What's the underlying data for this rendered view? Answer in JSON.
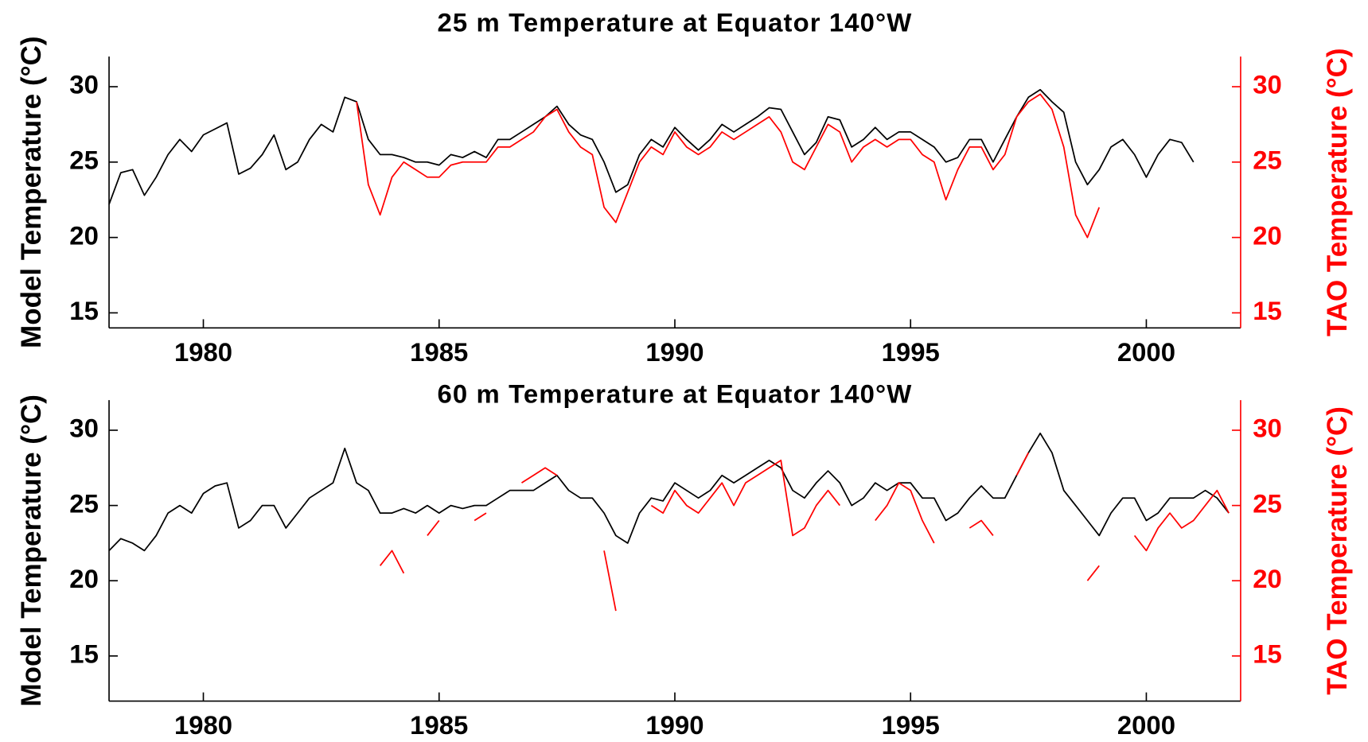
{
  "chart_data": [
    {
      "type": "line",
      "title": "25 m Temperature at Equator 140°W",
      "ylabel": "Model Temperature (°C)",
      "y2label": "TAO Temperature (°C)",
      "xlim": [
        1978,
        2002
      ],
      "xticks": [
        1980,
        1985,
        1990,
        1995,
        2000
      ],
      "ylim": [
        14,
        32
      ],
      "yticks": [
        15,
        20,
        25,
        30
      ],
      "y2lim": [
        14,
        32
      ],
      "y2ticks": [
        15,
        20,
        25,
        30
      ],
      "x": [
        1978,
        1978.25,
        1978.5,
        1978.75,
        1979,
        1979.25,
        1979.5,
        1979.75,
        1980,
        1980.25,
        1980.5,
        1980.75,
        1981,
        1981.25,
        1981.5,
        1981.75,
        1982,
        1982.25,
        1982.5,
        1982.75,
        1983,
        1983.25,
        1983.5,
        1983.75,
        1984,
        1984.25,
        1984.5,
        1984.75,
        1985,
        1985.25,
        1985.5,
        1985.75,
        1986,
        1986.25,
        1986.5,
        1986.75,
        1987,
        1987.25,
        1987.5,
        1987.75,
        1988,
        1988.25,
        1988.5,
        1988.75,
        1989,
        1989.25,
        1989.5,
        1989.75,
        1990,
        1990.25,
        1990.5,
        1990.75,
        1991,
        1991.25,
        1991.5,
        1991.75,
        1992,
        1992.25,
        1992.5,
        1992.75,
        1993,
        1993.25,
        1993.5,
        1993.75,
        1994,
        1994.25,
        1994.5,
        1994.75,
        1995,
        1995.25,
        1995.5,
        1995.75,
        1996,
        1996.25,
        1996.5,
        1996.75,
        1997,
        1997.25,
        1997.5,
        1997.75,
        1998,
        1998.25,
        1998.5,
        1998.75,
        1999,
        1999.25,
        1999.5,
        1999.75,
        2000,
        2000.25,
        2000.5,
        2000.75,
        2001
      ],
      "series": [
        {
          "color": "#000000",
          "axis": "y",
          "values": [
            22.2,
            24.3,
            24.5,
            22.8,
            24,
            25.5,
            26.5,
            25.7,
            26.8,
            27.2,
            27.6,
            24.2,
            24.6,
            25.5,
            26.8,
            24.5,
            25,
            26.5,
            27.5,
            27,
            29.3,
            29,
            26.5,
            25.5,
            25.5,
            25.3,
            25,
            25,
            24.8,
            25.5,
            25.3,
            25.7,
            25.3,
            26.5,
            26.5,
            27,
            27.5,
            28,
            28.7,
            27.5,
            26.8,
            26.5,
            25,
            23,
            23.5,
            25.5,
            26.5,
            26,
            27.3,
            26.5,
            25.8,
            26.5,
            27.5,
            27,
            27.5,
            28,
            28.6,
            28.5,
            27,
            25.5,
            26.3,
            28,
            27.8,
            26,
            26.5,
            27.3,
            26.5,
            27,
            27,
            26.5,
            26,
            25,
            25.3,
            26.5,
            26.5,
            25,
            26.5,
            28,
            29.3,
            29.8,
            29,
            28.3,
            25,
            23.5,
            24.5,
            26,
            26.5,
            25.5,
            24,
            25.5,
            26.5,
            26.3,
            25
          ]
        },
        {
          "color": "#ff0000",
          "axis": "y2",
          "values": [
            null,
            null,
            null,
            null,
            null,
            null,
            null,
            null,
            null,
            null,
            null,
            null,
            null,
            null,
            null,
            null,
            null,
            null,
            null,
            null,
            null,
            29,
            23.5,
            21.5,
            24,
            25,
            24.5,
            24,
            24,
            24.8,
            25,
            25,
            25,
            26,
            26,
            26.5,
            27,
            28,
            28.5,
            27,
            26,
            25.5,
            22,
            21,
            23,
            25,
            26,
            25.5,
            27,
            26,
            25.5,
            26,
            27,
            26.5,
            27,
            27.5,
            28,
            27,
            25,
            24.5,
            26,
            27.5,
            27,
            25,
            26,
            26.5,
            26,
            26.5,
            26.5,
            25.5,
            25,
            22.5,
            24.5,
            26,
            26,
            24.5,
            25.5,
            28,
            29,
            29.5,
            28.5,
            26,
            21.5,
            20,
            22,
            null,
            null,
            null,
            null,
            null,
            null,
            null,
            null
          ]
        }
      ]
    },
    {
      "type": "line",
      "title": "60 m Temperature at Equator 140°W",
      "ylabel": "Model Temperature (°C)",
      "y2label": "TAO Temperature (°C)",
      "xlim": [
        1978,
        2002
      ],
      "xticks": [
        1980,
        1985,
        1990,
        1995,
        2000
      ],
      "ylim": [
        12,
        32
      ],
      "yticks": [
        15,
        20,
        25,
        30
      ],
      "y2lim": [
        12,
        32
      ],
      "y2ticks": [
        15,
        20,
        25,
        30
      ],
      "x": [
        1978,
        1978.25,
        1978.5,
        1978.75,
        1979,
        1979.25,
        1979.5,
        1979.75,
        1980,
        1980.25,
        1980.5,
        1980.75,
        1981,
        1981.25,
        1981.5,
        1981.75,
        1982,
        1982.25,
        1982.5,
        1982.75,
        1983,
        1983.25,
        1983.5,
        1983.75,
        1984,
        1984.25,
        1984.5,
        1984.75,
        1985,
        1985.25,
        1985.5,
        1985.75,
        1986,
        1986.25,
        1986.5,
        1986.75,
        1987,
        1987.25,
        1987.5,
        1987.75,
        1988,
        1988.25,
        1988.5,
        1988.75,
        1989,
        1989.25,
        1989.5,
        1989.75,
        1990,
        1990.25,
        1990.5,
        1990.75,
        1991,
        1991.25,
        1991.5,
        1991.75,
        1992,
        1992.25,
        1992.5,
        1992.75,
        1993,
        1993.25,
        1993.5,
        1993.75,
        1994,
        1994.25,
        1994.5,
        1994.75,
        1995,
        1995.25,
        1995.5,
        1995.75,
        1996,
        1996.25,
        1996.5,
        1996.75,
        1997,
        1997.25,
        1997.5,
        1997.75,
        1998,
        1998.25,
        1998.5,
        1998.75,
        1999,
        1999.25,
        1999.5,
        1999.75,
        2000,
        2000.25,
        2000.5,
        2000.75,
        2001,
        2001.25,
        2001.5,
        2001.75
      ],
      "series": [
        {
          "color": "#000000",
          "axis": "y",
          "values": [
            22,
            22.8,
            22.5,
            22,
            23,
            24.5,
            25,
            24.5,
            25.8,
            26.3,
            26.5,
            23.5,
            24,
            25,
            25,
            23.5,
            24.5,
            25.5,
            26,
            26.5,
            28.8,
            26.5,
            26,
            24.5,
            24.5,
            24.8,
            24.5,
            25,
            24.5,
            25,
            24.8,
            25,
            25,
            25.5,
            26,
            26,
            26,
            26.5,
            27,
            26,
            25.5,
            25.5,
            24.5,
            23,
            22.5,
            24.5,
            25.5,
            25.3,
            26.5,
            26,
            25.5,
            26,
            27,
            26.5,
            27,
            27.5,
            28,
            27.5,
            26,
            25.5,
            26.5,
            27.3,
            26.5,
            25,
            25.5,
            26.5,
            26,
            26.5,
            26.5,
            25.5,
            25.5,
            24,
            24.5,
            25.5,
            26.3,
            25.5,
            25.5,
            27,
            28.5,
            29.8,
            28.5,
            26,
            25,
            24,
            23,
            24.5,
            25.5,
            25.5,
            24,
            24.5,
            25.5,
            25.5,
            25.5,
            26,
            25.5,
            24.5
          ]
        },
        {
          "color": "#ff0000",
          "axis": "y2",
          "values": [
            null,
            null,
            null,
            null,
            null,
            null,
            null,
            null,
            null,
            null,
            null,
            null,
            null,
            null,
            null,
            null,
            null,
            null,
            null,
            null,
            null,
            null,
            null,
            21,
            22,
            20.5,
            null,
            23,
            24,
            null,
            null,
            24,
            24.5,
            null,
            null,
            26.5,
            27,
            27.5,
            27,
            null,
            null,
            null,
            22,
            18,
            null,
            null,
            25,
            24.5,
            26,
            25,
            24.5,
            25.5,
            26.5,
            25,
            26.5,
            27,
            27.5,
            28,
            23,
            23.5,
            25,
            26,
            25,
            null,
            null,
            24,
            25,
            26.5,
            26,
            24,
            22.5,
            null,
            null,
            23.5,
            24,
            23,
            null,
            27,
            28.5,
            null,
            null,
            null,
            null,
            20,
            21,
            null,
            null,
            23,
            22,
            23.5,
            24.5,
            23.5,
            24,
            25,
            26,
            24.5
          ]
        }
      ]
    }
  ]
}
